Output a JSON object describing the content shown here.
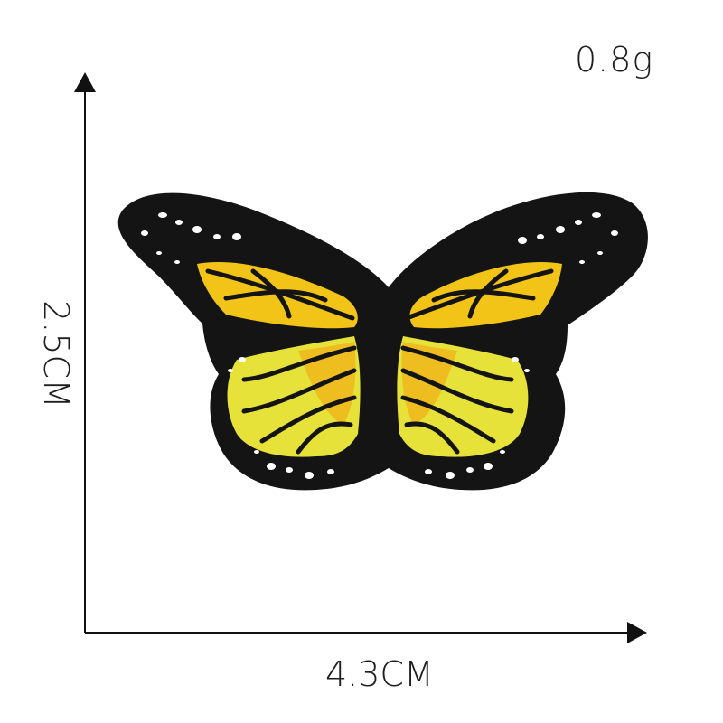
{
  "weight_label": "0.8g",
  "width_label": "4.3CM",
  "height_label": "2.5CM",
  "icons": [
    "vertical-axis-arrow",
    "horizontal-axis-arrow",
    "butterfly-patch"
  ],
  "colors": {
    "patch_border": "#141414",
    "wing_yellow": "#f2c417",
    "wing_light_yellow": "#e6e23a",
    "spots": "#ffffff"
  }
}
